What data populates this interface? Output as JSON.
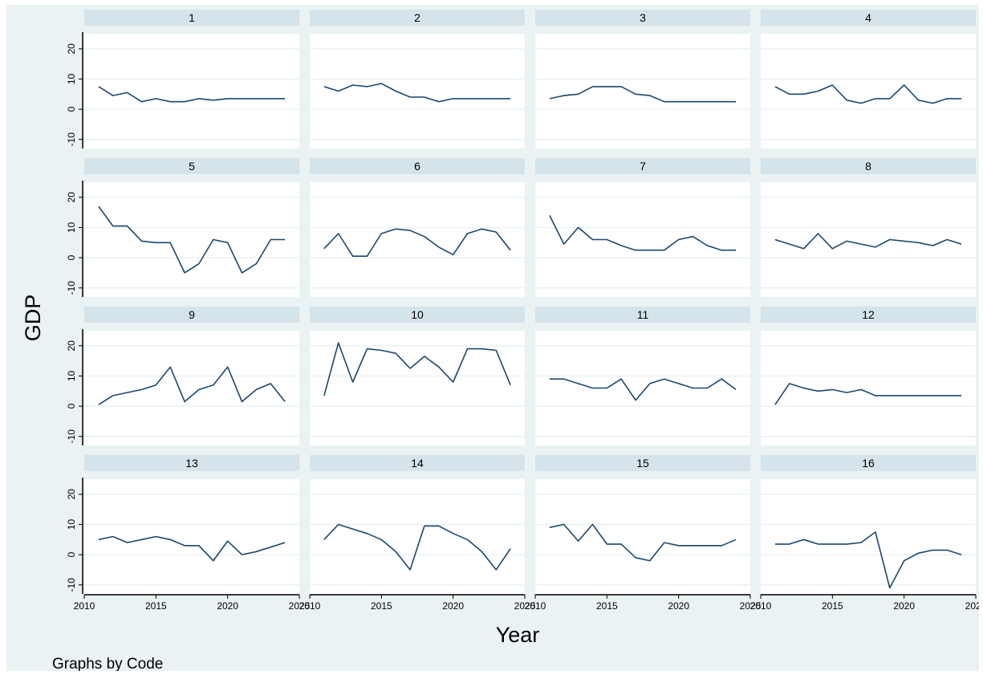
{
  "chart_data": {
    "type": "line",
    "xlabel": "Year",
    "ylabel": "GDP",
    "note": "Graphs by Code",
    "xlim": [
      2010,
      2025
    ],
    "ylim": [
      -13,
      25
    ],
    "x_ticks": [
      "2010",
      "2015",
      "2020",
      "2025"
    ],
    "y_ticks": [
      "-10",
      "0",
      "10",
      "20"
    ],
    "x": [
      2011,
      2012,
      2013,
      2014,
      2015,
      2016,
      2017,
      2018,
      2019,
      2020,
      2021,
      2022,
      2023,
      2024
    ],
    "grid": true,
    "line_color": "#1a476f",
    "panels": [
      {
        "code": "1",
        "values": [
          7.5,
          4.5,
          5.5,
          2.5,
          3.5,
          2.5,
          2.5,
          3.5,
          3,
          3.5,
          3.5,
          3.5,
          3.5,
          3.5
        ]
      },
      {
        "code": "2",
        "values": [
          7.5,
          6,
          8,
          7.5,
          8.5,
          6,
          4,
          4,
          2.5,
          3.5,
          3.5,
          3.5,
          3.5,
          3.5
        ]
      },
      {
        "code": "3",
        "values": [
          3.5,
          4.5,
          5,
          7.5,
          7.5,
          7.5,
          5,
          4.5,
          2.5,
          2.5,
          2.5,
          2.5,
          2.5,
          2.5
        ]
      },
      {
        "code": "4",
        "values": [
          7.5,
          5,
          5,
          6,
          8,
          3,
          2,
          3.5,
          3.5,
          8,
          3,
          2,
          3.5,
          3.5
        ]
      },
      {
        "code": "5",
        "values": [
          17,
          10.5,
          10.5,
          5.5,
          5,
          5,
          -5,
          -2,
          6,
          5,
          -5,
          -2,
          6,
          6
        ]
      },
      {
        "code": "6",
        "values": [
          3,
          8,
          0.5,
          0.5,
          8,
          9.5,
          9,
          7,
          3.5,
          1,
          8,
          9.5,
          8.5,
          2.5
        ]
      },
      {
        "code": "7",
        "values": [
          14,
          4.5,
          10,
          6,
          6,
          4,
          2.5,
          2.5,
          2.5,
          6,
          7,
          4,
          2.5,
          2.5
        ]
      },
      {
        "code": "8",
        "values": [
          6,
          4.5,
          3,
          8,
          3,
          5.5,
          4.5,
          3.5,
          6,
          5.5,
          5,
          4,
          6,
          4.5
        ]
      },
      {
        "code": "9",
        "values": [
          0.5,
          3.5,
          4.5,
          5.5,
          7,
          13,
          1.5,
          5.5,
          7,
          13,
          1.5,
          5.5,
          7.5,
          1.5
        ]
      },
      {
        "code": "10",
        "values": [
          3.5,
          21,
          8,
          19,
          18.5,
          17.5,
          12.5,
          16.5,
          13,
          8,
          19,
          19,
          18.5,
          7
        ]
      },
      {
        "code": "11",
        "values": [
          9,
          9,
          7.5,
          6,
          6,
          9,
          2,
          7.5,
          9,
          7.5,
          6,
          6,
          9,
          5.5
        ]
      },
      {
        "code": "12",
        "values": [
          0.5,
          7.5,
          6,
          5,
          5.5,
          4.5,
          5.5,
          3.5,
          3.5,
          3.5,
          3.5,
          3.5,
          3.5,
          3.5
        ]
      },
      {
        "code": "13",
        "values": [
          5,
          6,
          4,
          5,
          6,
          5,
          3,
          3,
          -2,
          4.5,
          0,
          1,
          2.5,
          4
        ]
      },
      {
        "code": "14",
        "values": [
          5,
          10,
          8.5,
          7,
          5,
          1,
          -5,
          9.5,
          9.5,
          7,
          5,
          1,
          -5,
          2
        ]
      },
      {
        "code": "15",
        "values": [
          9,
          10,
          4.5,
          10,
          3.5,
          3.5,
          -1,
          -2,
          4,
          3,
          3,
          3,
          3,
          5
        ]
      },
      {
        "code": "16",
        "values": [
          3.5,
          3.5,
          5,
          3.5,
          3.5,
          3.5,
          4,
          7.5,
          -11,
          -2,
          0.5,
          1.5,
          1.5,
          0
        ]
      }
    ]
  }
}
